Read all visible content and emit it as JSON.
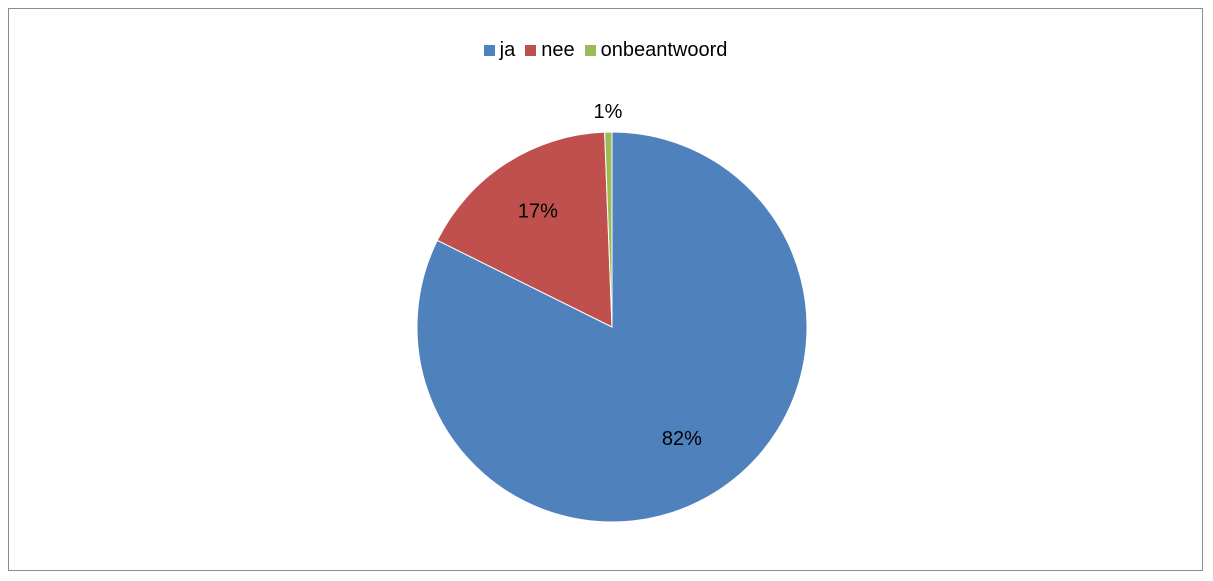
{
  "chart_data": {
    "type": "pie",
    "title": "",
    "legend_position": "top",
    "slices": [
      {
        "label": "ja",
        "value": 82,
        "display": "82%",
        "color": "#4F81BD"
      },
      {
        "label": "nee",
        "value": 17,
        "display": "17%",
        "color": "#C0504D"
      },
      {
        "label": "onbeantwoord",
        "value": 0.6,
        "display": "1%",
        "color": "#9BBB59"
      }
    ]
  }
}
